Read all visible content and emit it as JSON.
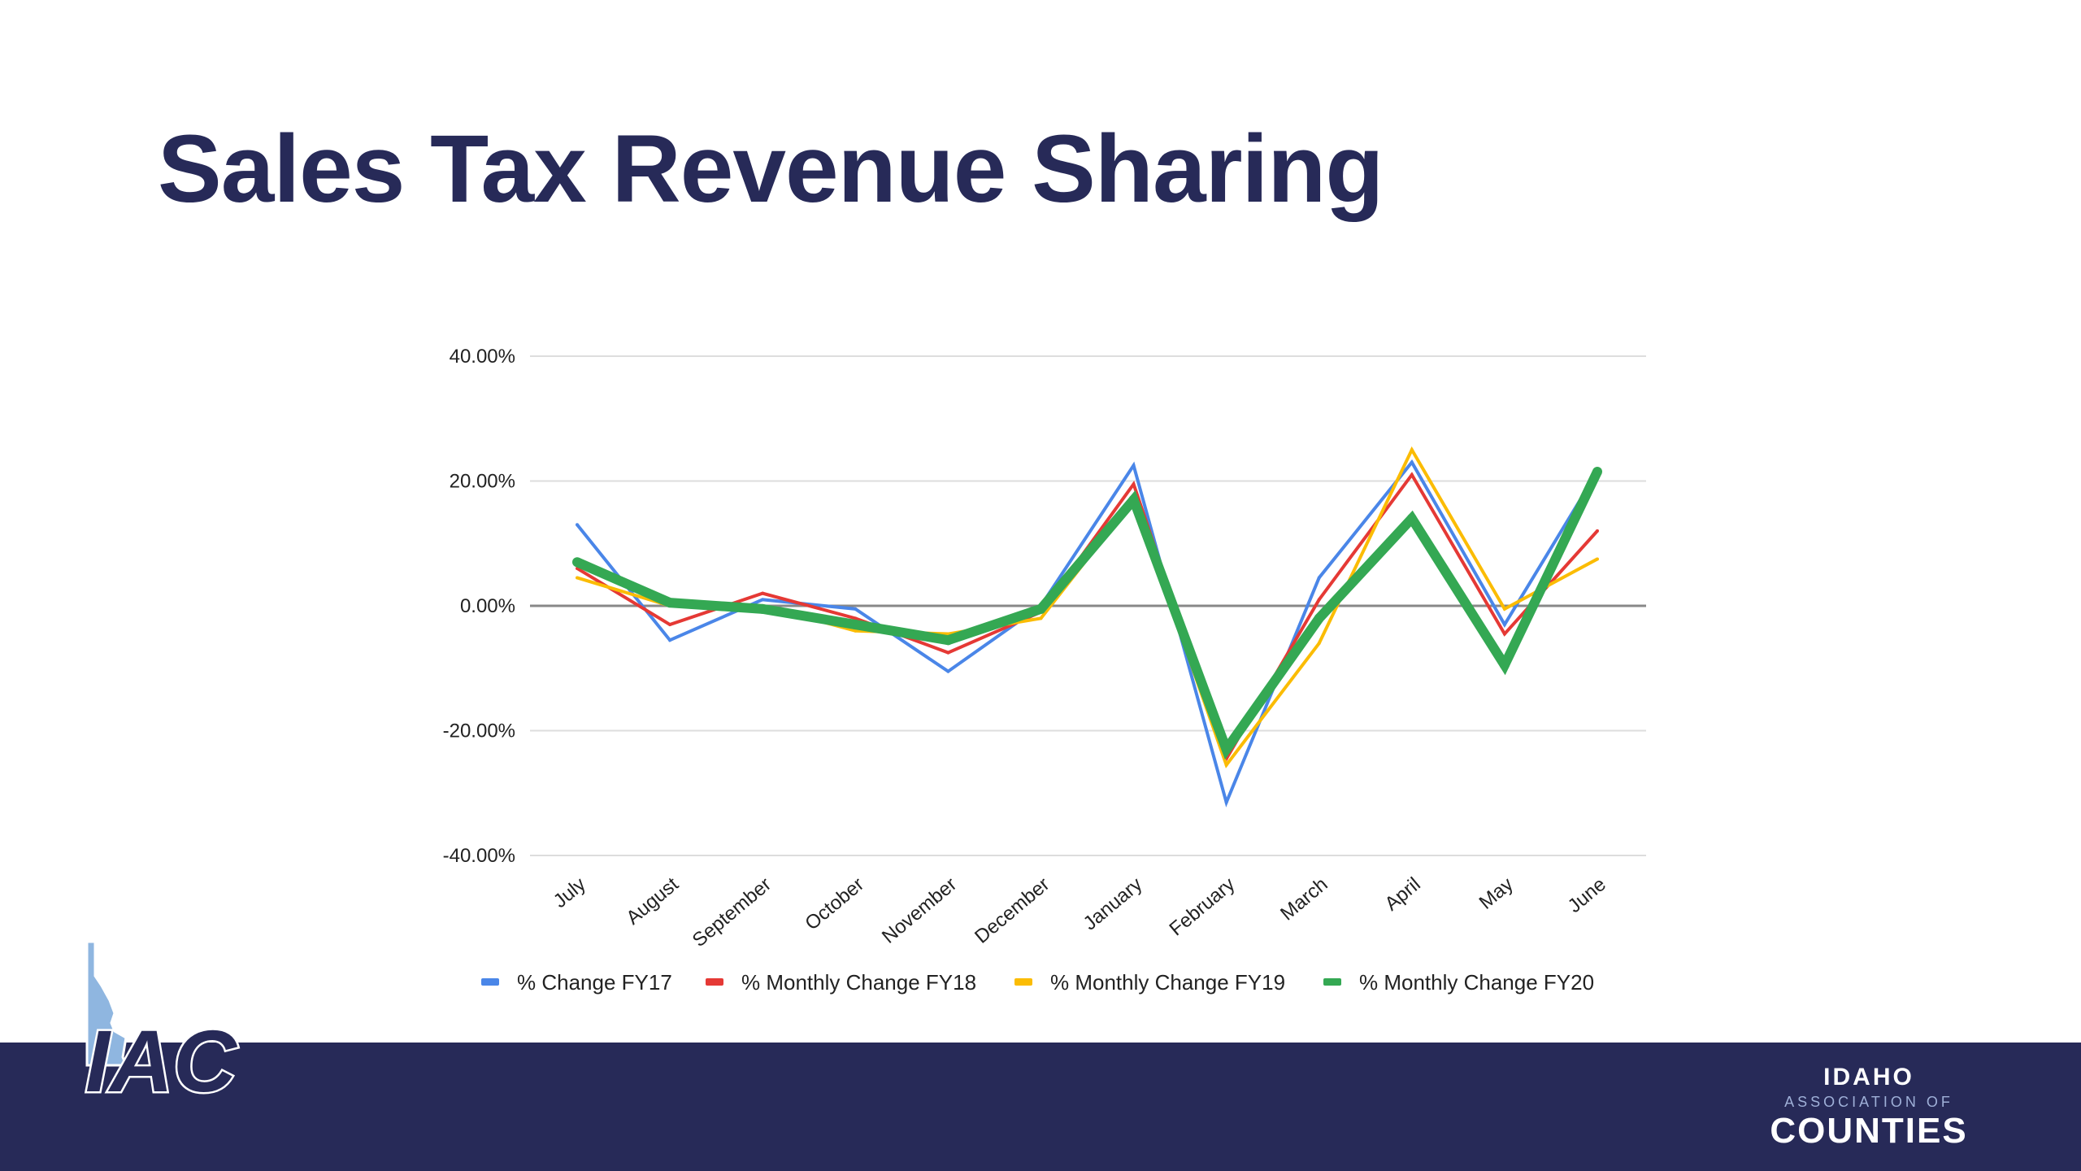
{
  "slide": {
    "title": "Sales Tax Revenue Sharing"
  },
  "branding": {
    "logo_text": "IAC",
    "org_line1": "IDAHO",
    "org_line2": "ASSOCIATION OF",
    "org_line3": "COUNTIES",
    "colors": {
      "navy": "#272a58",
      "idaho_light_blue": "#8fb6e0"
    }
  },
  "chart_data": {
    "type": "line",
    "categories": [
      "July",
      "August",
      "September",
      "October",
      "November",
      "December",
      "January",
      "February",
      "March",
      "April",
      "May",
      "June"
    ],
    "ylim": [
      -40,
      40
    ],
    "yticks": [
      40,
      20,
      0,
      -20,
      -40
    ],
    "ytick_labels": [
      "40.00%",
      "20.00%",
      "0.00%",
      "-20.00%",
      "-40.00%"
    ],
    "grid": true,
    "legend_position": "bottom",
    "series": [
      {
        "name": "% Change FY17",
        "color": "#4a86e8",
        "values": [
          13,
          -5.5,
          1,
          -0.5,
          -10.5,
          0,
          22.5,
          -31.5,
          4.5,
          23,
          -3,
          21.5
        ]
      },
      {
        "name": "% Monthly Change FY18",
        "color": "#e53935",
        "values": [
          6,
          -3,
          2,
          -2,
          -7.5,
          -1,
          19.5,
          -24.5,
          1,
          21,
          -4.5,
          12
        ]
      },
      {
        "name": "% Monthly Change FY19",
        "color": "#fbbc04",
        "values": [
          4.5,
          0,
          0,
          -4,
          -4.5,
          -2,
          17,
          -25.5,
          -6,
          25,
          -0.5,
          7.5
        ]
      },
      {
        "name": "% Monthly Change FY20",
        "color": "#34a853",
        "values": [
          7,
          0.5,
          -0.5,
          -3,
          -5.5,
          -0.5,
          17,
          -23,
          -2,
          14,
          -9.5,
          21.5
        ]
      }
    ]
  }
}
